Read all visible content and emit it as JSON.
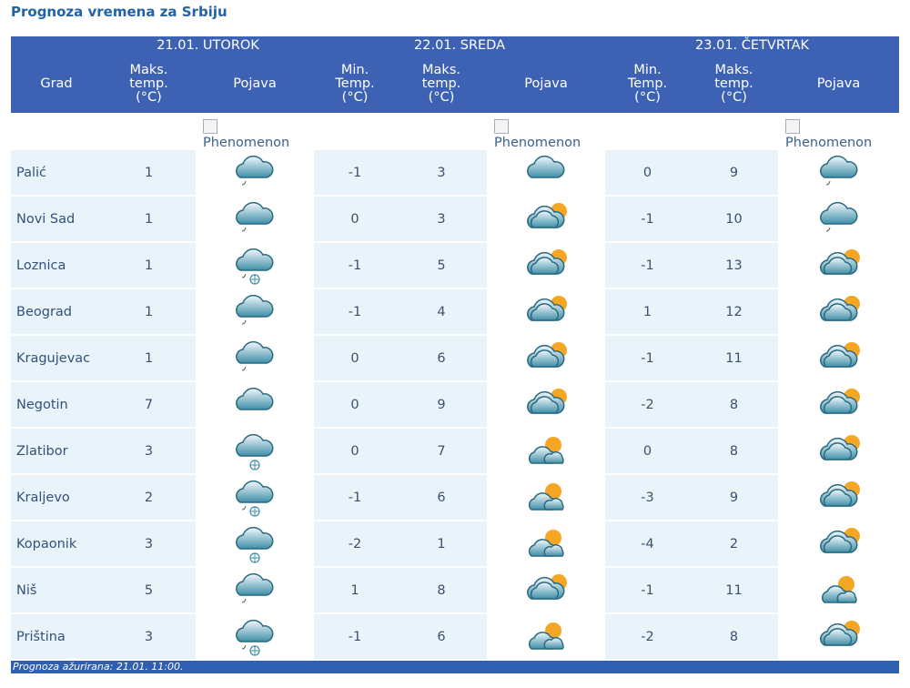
{
  "title": "Prognoza vremena za Srbiju",
  "table": {
    "day_headers": [
      "21.01. UTOROK",
      "22.01. SREDA",
      "23.01. ČETVRTAK"
    ],
    "column_headers": [
      "Grad",
      "Maks. temp. (°C)",
      "Pojava",
      "Min. Temp. (°C)",
      "Maks. temp. (°C)",
      "Pojava",
      "Min. Temp. (°C)",
      "Maks. temp. (°C)",
      "Pojava"
    ],
    "image_alts": [
      "Phenomenon",
      "Phenomenon",
      "Phenomenon"
    ],
    "rows": [
      {
        "city": "Palić",
        "d1_max": 1,
        "d2_min": -1,
        "d2_max": 3,
        "d3_min": 0,
        "d3_max": 9,
        "icons": [
          "cloud-drizzle",
          "cloud",
          "cloud-drizzle"
        ]
      },
      {
        "city": "Novi Sad",
        "d1_max": 1,
        "d2_min": 0,
        "d2_max": 3,
        "d3_min": -1,
        "d3_max": 10,
        "icons": [
          "cloud-drizzle",
          "sun-cloud",
          "cloud-drizzle"
        ]
      },
      {
        "city": "Loznica",
        "d1_max": 1,
        "d2_min": -1,
        "d2_max": 5,
        "d3_min": -1,
        "d3_max": 13,
        "icons": [
          "cloud-rain-snow",
          "sun-cloud",
          "sun-cloud"
        ]
      },
      {
        "city": "Beograd",
        "d1_max": 1,
        "d2_min": -1,
        "d2_max": 4,
        "d3_min": 1,
        "d3_max": 12,
        "icons": [
          "cloud-drizzle",
          "sun-cloud",
          "sun-cloud"
        ]
      },
      {
        "city": "Kragujevac",
        "d1_max": 1,
        "d2_min": 0,
        "d2_max": 6,
        "d3_min": -1,
        "d3_max": 11,
        "icons": [
          "cloud-drizzle",
          "sun-cloud",
          "sun-cloud"
        ]
      },
      {
        "city": "Negotin",
        "d1_max": 7,
        "d2_min": 0,
        "d2_max": 9,
        "d3_min": -2,
        "d3_max": 8,
        "icons": [
          "cloud",
          "sun-cloud",
          "sun-cloud"
        ]
      },
      {
        "city": "Zlatibor",
        "d1_max": 3,
        "d2_min": 0,
        "d2_max": 7,
        "d3_min": 0,
        "d3_max": 8,
        "icons": [
          "cloud-snow",
          "sun-partly",
          "sun-cloud"
        ]
      },
      {
        "city": "Kraljevo",
        "d1_max": 2,
        "d2_min": -1,
        "d2_max": 6,
        "d3_min": -3,
        "d3_max": 9,
        "icons": [
          "cloud-rain-snow",
          "sun-partly",
          "sun-cloud"
        ]
      },
      {
        "city": "Kopaonik",
        "d1_max": 3,
        "d2_min": -2,
        "d2_max": 1,
        "d3_min": -4,
        "d3_max": 2,
        "icons": [
          "cloud-snow",
          "sun-partly",
          "sun-cloud"
        ]
      },
      {
        "city": "Niš",
        "d1_max": 5,
        "d2_min": 1,
        "d2_max": 8,
        "d3_min": -1,
        "d3_max": 11,
        "icons": [
          "cloud-drizzle",
          "sun-cloud",
          "sun-partly"
        ]
      },
      {
        "city": "Priština",
        "d1_max": 3,
        "d2_min": -1,
        "d2_max": 6,
        "d3_min": -2,
        "d3_max": 8,
        "icons": [
          "cloud-rain-snow",
          "sun-partly",
          "sun-cloud"
        ]
      }
    ],
    "footer": "Prognoza ažurirana:  21.01. 11:00."
  }
}
